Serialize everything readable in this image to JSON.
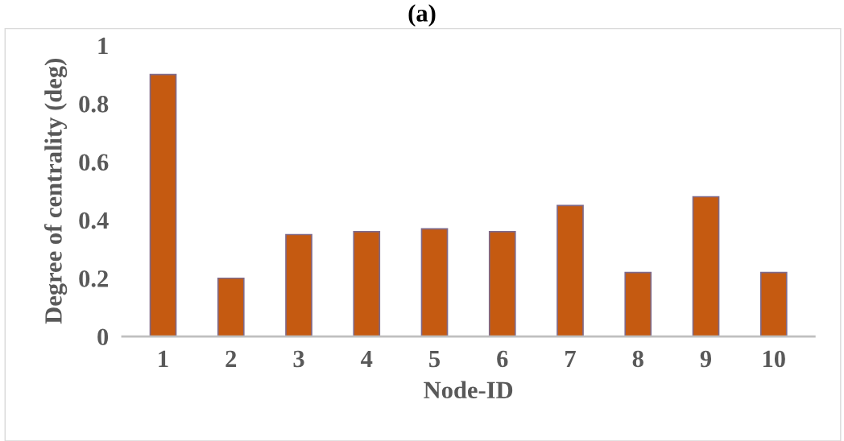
{
  "chart_data": {
    "type": "bar",
    "title": "(a)",
    "xlabel": "Node-ID",
    "ylabel": "Degree of centrality (deg)",
    "categories": [
      "1",
      "2",
      "3",
      "4",
      "5",
      "6",
      "7",
      "8",
      "9",
      "10"
    ],
    "values": [
      0.9,
      0.2,
      0.35,
      0.36,
      0.37,
      0.36,
      0.45,
      0.22,
      0.48,
      0.22
    ],
    "color": "#c55a11",
    "ylim": [
      0,
      1
    ],
    "yticks": [
      0,
      0.2,
      0.4,
      0.6,
      0.8,
      1
    ],
    "grid": false
  }
}
